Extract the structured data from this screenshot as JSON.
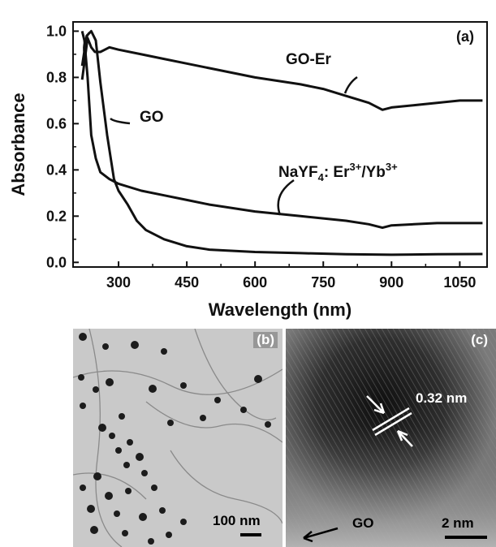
{
  "chart_data": {
    "type": "line",
    "panel_label": "(a)",
    "xlabel": "Wavelength (nm)",
    "ylabel": "Absorbance",
    "xlim": [
      200,
      1110
    ],
    "ylim": [
      -0.02,
      1.04
    ],
    "x_ticks": [
      300,
      450,
      600,
      750,
      900,
      1050
    ],
    "y_ticks": [
      0.0,
      0.2,
      0.4,
      0.6,
      0.8,
      1.0
    ],
    "x_tick_labels": [
      "300",
      "450",
      "600",
      "750",
      "900",
      "1050"
    ],
    "y_tick_labels": [
      "0.0",
      "0.2",
      "0.4",
      "0.6",
      "0.8",
      "1.0"
    ],
    "grid": false,
    "legend": "none",
    "series": [
      {
        "name": "GO-Er",
        "x": [
          220,
          232,
          240,
          248,
          260,
          280,
          300,
          350,
          400,
          450,
          500,
          600,
          700,
          750,
          800,
          850,
          880,
          900,
          950,
          1000,
          1050,
          1100
        ],
        "y": [
          0.79,
          0.97,
          0.93,
          0.91,
          0.91,
          0.93,
          0.92,
          0.9,
          0.88,
          0.86,
          0.84,
          0.8,
          0.77,
          0.75,
          0.72,
          0.69,
          0.66,
          0.67,
          0.68,
          0.69,
          0.7,
          0.7
        ]
      },
      {
        "name": "GO",
        "x": [
          220,
          230,
          240,
          250,
          260,
          275,
          290,
          300,
          320,
          340,
          360,
          400,
          450,
          500,
          600,
          700,
          800,
          900,
          1000,
          1100
        ],
        "y": [
          0.85,
          0.98,
          1.0,
          0.96,
          0.78,
          0.55,
          0.36,
          0.31,
          0.25,
          0.18,
          0.14,
          0.1,
          0.07,
          0.055,
          0.045,
          0.04,
          0.035,
          0.033,
          0.035,
          0.036
        ]
      },
      {
        "name": "NaYF4: Er3+/Yb3+",
        "x": [
          220,
          225,
          232,
          240,
          250,
          260,
          280,
          300,
          350,
          400,
          450,
          500,
          600,
          700,
          800,
          850,
          880,
          900,
          950,
          1000,
          1050,
          1100
        ],
        "y": [
          1.0,
          0.96,
          0.8,
          0.55,
          0.45,
          0.39,
          0.36,
          0.34,
          0.31,
          0.29,
          0.27,
          0.25,
          0.22,
          0.2,
          0.18,
          0.165,
          0.15,
          0.16,
          0.165,
          0.17,
          0.17,
          0.17
        ]
      }
    ],
    "annotations": [
      "GO-Er",
      "GO",
      "NaYF",
      "4",
      ": Er",
      "3+",
      "/Yb",
      "3+"
    ]
  },
  "panel_b": {
    "label": "(b)",
    "scale_bar": "100 nm"
  },
  "panel_c": {
    "label": "(c)",
    "measurement": "0.32 nm",
    "scale_bar": "2 nm",
    "pointer_label": "GO"
  }
}
